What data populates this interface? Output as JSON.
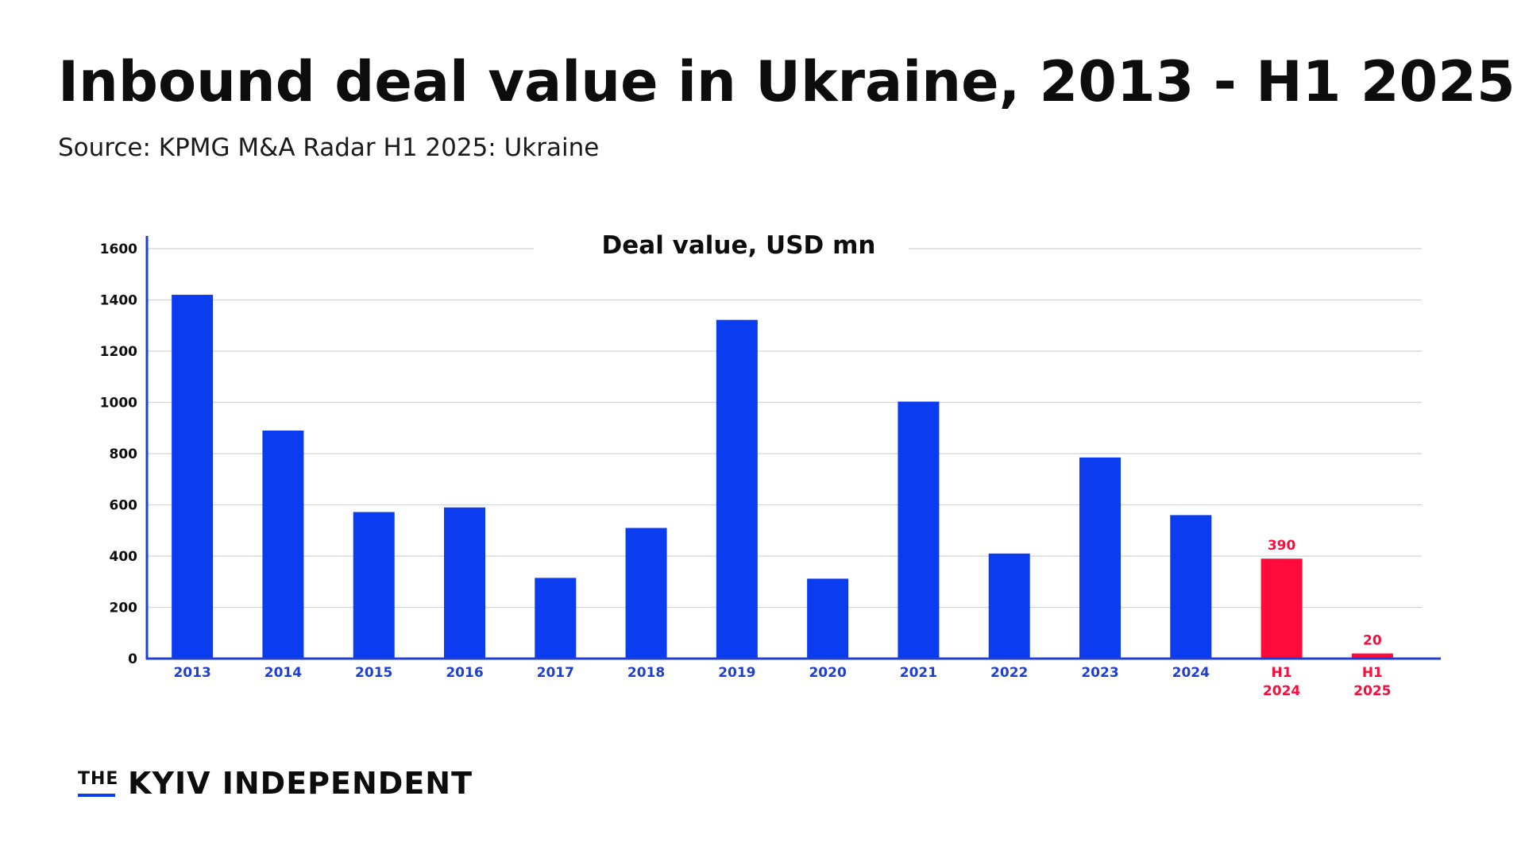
{
  "page": {
    "title": "Inbound deal value in Ukraine, 2013 - H1 2025",
    "subtitle": "Source: KPMG M&A Radar H1 2025: Ukraine"
  },
  "brand": {
    "logo_prefix": "THE",
    "logo_name": "KYIV INDEPENDENT",
    "accent_color": "#0b3cf0"
  },
  "chart_data": {
    "type": "bar",
    "title": "Deal value, USD mn",
    "xlabel": "",
    "ylabel": "",
    "ylim": [
      0,
      1600
    ],
    "yticks": [
      0,
      200,
      400,
      600,
      800,
      1000,
      1200,
      1400,
      1600
    ],
    "grid": true,
    "categories": [
      [
        "2013"
      ],
      [
        "2014"
      ],
      [
        "2015"
      ],
      [
        "2016"
      ],
      [
        "2017"
      ],
      [
        "2018"
      ],
      [
        "2019"
      ],
      [
        "2020"
      ],
      [
        "2021"
      ],
      [
        "2022"
      ],
      [
        "2023"
      ],
      [
        "2024"
      ],
      [
        "H1",
        "2024"
      ],
      [
        "H1",
        "2025"
      ]
    ],
    "values": [
      1420,
      890,
      572,
      590,
      315,
      510,
      1322,
      312,
      1003,
      410,
      785,
      560,
      390,
      20
    ],
    "highlighted": [
      false,
      false,
      false,
      false,
      false,
      false,
      false,
      false,
      false,
      false,
      false,
      false,
      true,
      true
    ],
    "data_labels": [
      "",
      "",
      "",
      "",
      "",
      "",
      "",
      "",
      "",
      "",
      "",
      "",
      "390",
      "20"
    ],
    "colors": {
      "bar": "#0b3cf0",
      "highlight": "#ff0a3a",
      "axis": "#1f3fd0",
      "grid": "#d4d4d4",
      "tick_text": "#0d0d0d"
    }
  }
}
